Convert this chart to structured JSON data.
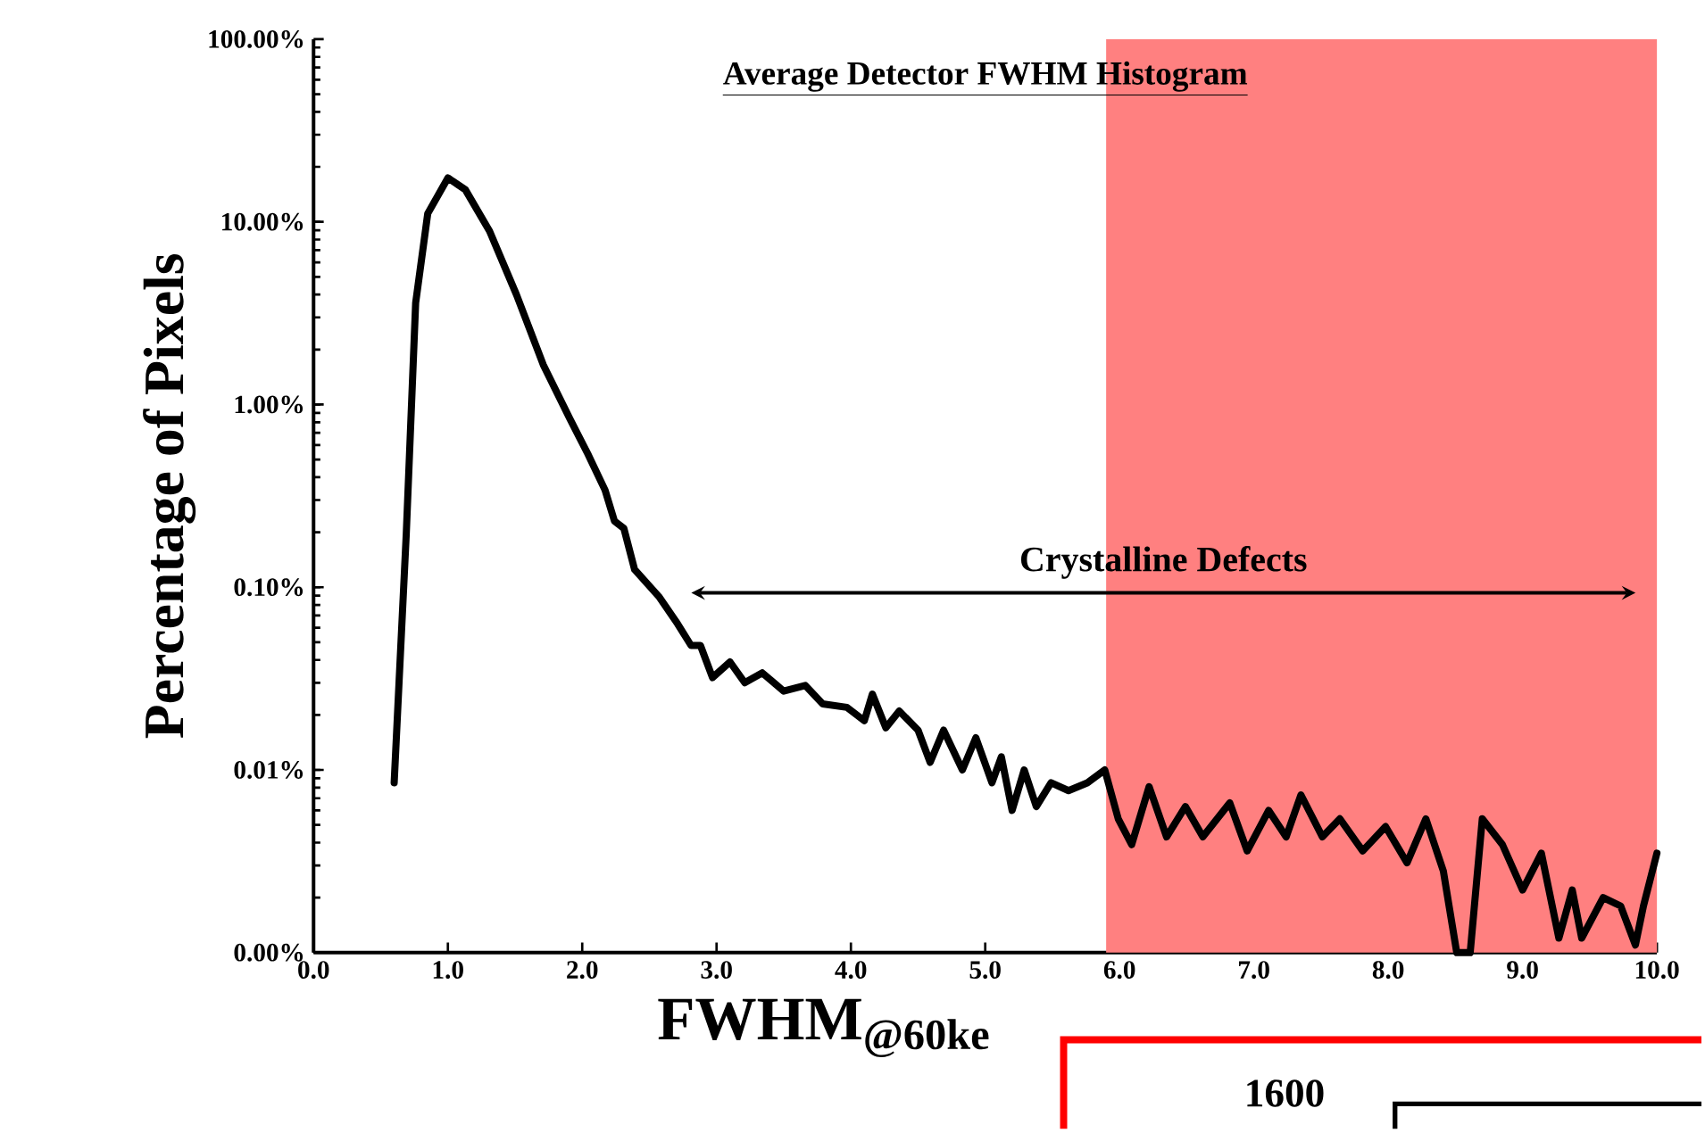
{
  "chart_data": {
    "type": "line",
    "title": "Average Detector FWHM Histogram",
    "xlabel": "FWHM$_{@60ke}$",
    "ylabel": "Percentage of Pixels",
    "x": [
      0.6,
      0.69,
      0.76,
      0.85,
      1.0,
      1.13,
      1.31,
      1.51,
      1.71,
      1.91,
      2.04,
      2.17,
      2.24,
      2.31,
      2.39,
      2.57,
      2.71,
      2.81,
      2.88,
      2.97,
      3.1,
      3.21,
      3.34,
      3.5,
      3.66,
      3.79,
      3.97,
      4.1,
      4.16,
      4.26,
      4.36,
      4.5,
      4.59,
      4.69,
      4.83,
      4.93,
      5.05,
      5.12,
      5.2,
      5.29,
      5.38,
      5.49,
      5.62,
      5.76,
      5.89,
      5.99,
      6.09,
      6.22,
      6.35,
      6.49,
      6.62,
      6.82,
      6.95,
      7.11,
      7.24,
      7.35,
      7.51,
      7.64,
      7.81,
      7.98,
      8.14,
      8.28,
      8.41,
      8.51,
      8.61,
      8.7,
      8.85,
      9.0,
      9.14,
      9.27,
      9.37,
      9.44,
      9.6,
      9.73,
      9.84,
      9.9,
      10.0
    ],
    "series": [
      {
        "color": "#000000",
        "values": [
          0.0085,
          0.195,
          3.6,
          11.1,
          17.4,
          15,
          8.9,
          4.0,
          1.65,
          0.83,
          0.54,
          0.34,
          0.23,
          0.21,
          0.125,
          0.089,
          0.063,
          0.048,
          0.048,
          0.032,
          0.039,
          0.03,
          0.034,
          0.027,
          0.029,
          0.023,
          0.022,
          0.0186,
          0.026,
          0.017,
          0.021,
          0.0165,
          0.011,
          0.0165,
          0.01,
          0.015,
          0.0085,
          0.0118,
          0.006,
          0.01,
          0.0063,
          0.0085,
          0.0077,
          0.0085,
          0.01,
          0.0054,
          0.0039,
          0.0081,
          0.0043,
          0.0063,
          0.0043,
          0.0066,
          0.0036,
          0.006,
          0.0043,
          0.0073,
          0.0043,
          0.0054,
          0.0036,
          0.0049,
          0.0031,
          0.0054,
          0.0028,
          0.001,
          0.001,
          0.0054,
          0.0039,
          0.0022,
          0.0035,
          0.0012,
          0.0022,
          0.0012,
          0.002,
          0.0018,
          0.0011,
          0.0018,
          0.0035
        ]
      }
    ],
    "log": "y",
    "xlim": [
      0,
      10
    ],
    "ylim": [
      0.001,
      100
    ],
    "xticks": [
      {
        "value": 0,
        "label": "0.0"
      },
      {
        "value": 1,
        "label": "1.0"
      },
      {
        "value": 2,
        "label": "2.0"
      },
      {
        "value": 3,
        "label": "3.0"
      },
      {
        "value": 4,
        "label": "4.0"
      },
      {
        "value": 5,
        "label": "5.0"
      },
      {
        "value": 6,
        "label": "6.0"
      },
      {
        "value": 7,
        "label": "7.0"
      },
      {
        "value": 8,
        "label": "8.0"
      },
      {
        "value": 9,
        "label": "9.0"
      },
      {
        "value": 10,
        "label": "10.0"
      }
    ],
    "yticks": [
      {
        "value": 0.001,
        "label": "0.00%"
      },
      {
        "value": 0.01,
        "label": "0.01%"
      },
      {
        "value": 0.1,
        "label": "0.10%"
      },
      {
        "value": 1,
        "label": "1.00%"
      },
      {
        "value": 10,
        "label": "10.00%"
      },
      {
        "value": 100,
        "label": "100.00%"
      }
    ],
    "bands": [
      {
        "axis": "x",
        "from": 5.9,
        "to": 10.0,
        "color": "#ff8080"
      }
    ],
    "annotations": [
      "Crystalline Defects",
      "1600"
    ],
    "marker": "none",
    "line_style": "solid"
  }
}
